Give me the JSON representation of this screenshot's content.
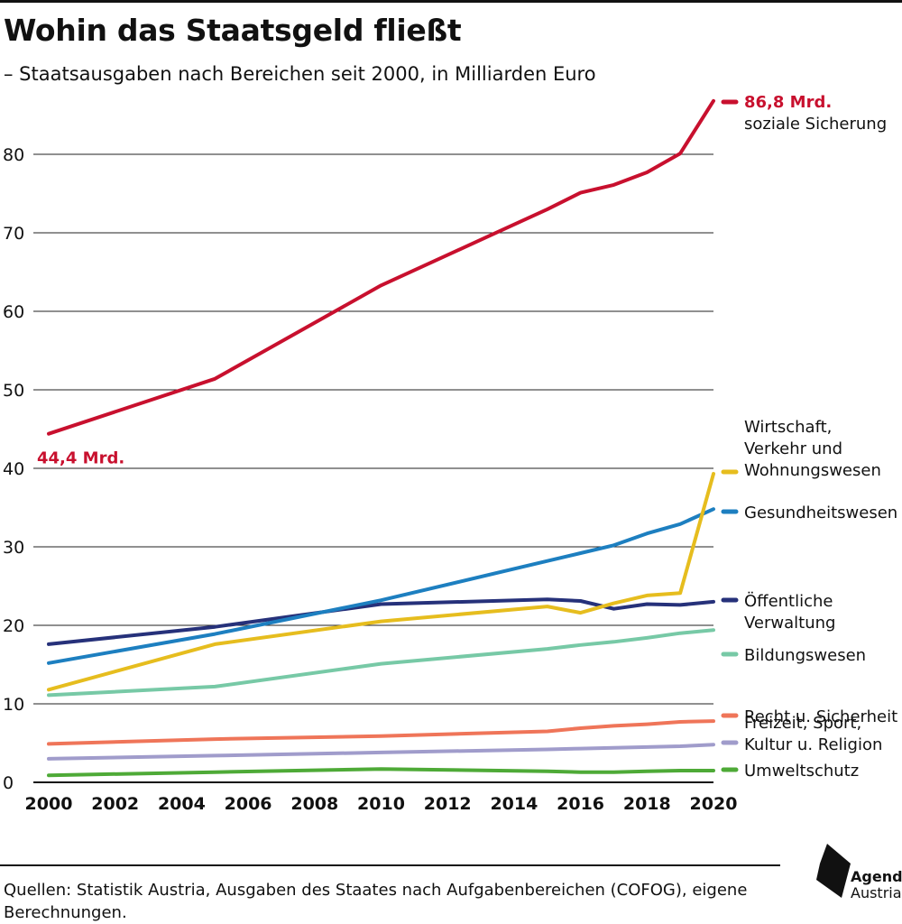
{
  "title": "Wohin das Staatsgeld fließt",
  "subtitle": "– Staatsausgaben nach Bereichen seit 2000, in Milliarden Euro",
  "source": "Quellen: Statistik Austria, Ausgaben des Staates nach Aufgabenbereichen (COFOG), eigene Berechnungen.",
  "logo": {
    "name": "Agenda",
    "sub": "Austria"
  },
  "chart_data": {
    "type": "line",
    "title": "Wohin das Staatsgeld fließt",
    "subtitle": "– Staatsausgaben nach Bereichen seit 2000, in Milliarden Euro",
    "xlim": [
      2000,
      2020
    ],
    "ylim": [
      0,
      88
    ],
    "x_ticks": [
      2000,
      2002,
      2004,
      2006,
      2008,
      2010,
      2012,
      2014,
      2016,
      2018,
      2020
    ],
    "y_ticks": [
      0,
      10,
      20,
      30,
      40,
      50,
      60,
      70,
      80
    ],
    "grid": "horizontal",
    "legend": "right (inline labels)",
    "x": [
      2000,
      2005,
      2010,
      2015,
      2016,
      2017,
      2018,
      2019,
      2020
    ],
    "series": [
      {
        "name": "soziale Sicherung",
        "color": "#c8102e",
        "values": [
          44.4,
          51.4,
          63.3,
          73.0,
          75.1,
          76.1,
          77.7,
          80.1,
          86.8
        ]
      },
      {
        "name": "Wirtschaft, Verkehr und Wohnungswesen",
        "color": "#e6bd1e",
        "values": [
          11.8,
          17.6,
          20.5,
          22.4,
          21.6,
          22.8,
          23.8,
          24.1,
          39.3
        ]
      },
      {
        "name": "Gesundheitswesen",
        "color": "#1d7fc0",
        "values": [
          15.2,
          18.9,
          23.2,
          28.2,
          29.2,
          30.2,
          31.7,
          32.9,
          34.8
        ]
      },
      {
        "name": "Öffentliche Verwaltung",
        "color": "#26317a",
        "values": [
          17.6,
          19.8,
          22.7,
          23.3,
          23.1,
          22.1,
          22.7,
          22.6,
          23.0
        ]
      },
      {
        "name": "Bildungswesen",
        "color": "#77c9a6",
        "values": [
          11.1,
          12.2,
          15.1,
          17.0,
          17.5,
          17.9,
          18.4,
          19.0,
          19.4
        ]
      },
      {
        "name": "Recht u. Sicherheit",
        "color": "#ef7559",
        "values": [
          4.9,
          5.5,
          5.9,
          6.5,
          6.9,
          7.2,
          7.4,
          7.7,
          7.8
        ]
      },
      {
        "name": "Freizeit, Sport, Kultur u. Religion",
        "color": "#a09ccb",
        "values": [
          3.0,
          3.4,
          3.8,
          4.2,
          4.3,
          4.4,
          4.5,
          4.6,
          4.8
        ]
      },
      {
        "name": "Umweltschutz",
        "color": "#4eaa37",
        "values": [
          0.9,
          1.3,
          1.7,
          1.4,
          1.3,
          1.3,
          1.4,
          1.5,
          1.5
        ]
      }
    ],
    "annotations": [
      {
        "text": "44,4 Mrd.",
        "series": "soziale Sicherung",
        "x": 2000,
        "color": "#c8102e"
      },
      {
        "text": "86,8 Mrd.",
        "series": "soziale Sicherung",
        "x": 2020,
        "color": "#c8102e"
      }
    ],
    "series_labels": [
      {
        "series": "soziale Sicherung",
        "lines": [
          "soziale Sicherung"
        ]
      },
      {
        "series": "Wirtschaft, Verkehr und Wohnungswesen",
        "lines": [
          "Wirtschaft,",
          "Verkehr und",
          "Wohnungswesen"
        ]
      },
      {
        "series": "Gesundheitswesen",
        "lines": [
          "Gesundheitswesen"
        ]
      },
      {
        "series": "Öffentliche Verwaltung",
        "lines": [
          "Öffentliche",
          "Verwaltung"
        ]
      },
      {
        "series": "Bildungswesen",
        "lines": [
          "Bildungswesen"
        ]
      },
      {
        "series": "Recht u. Sicherheit",
        "lines": [
          "Recht u. Sicherheit"
        ]
      },
      {
        "series": "Freizeit, Sport, Kultur u. Religion",
        "lines": [
          "Freizeit, Sport,",
          "Kultur u. Religion"
        ]
      },
      {
        "series": "Umweltschutz",
        "lines": [
          "Umweltschutz"
        ]
      }
    ]
  }
}
